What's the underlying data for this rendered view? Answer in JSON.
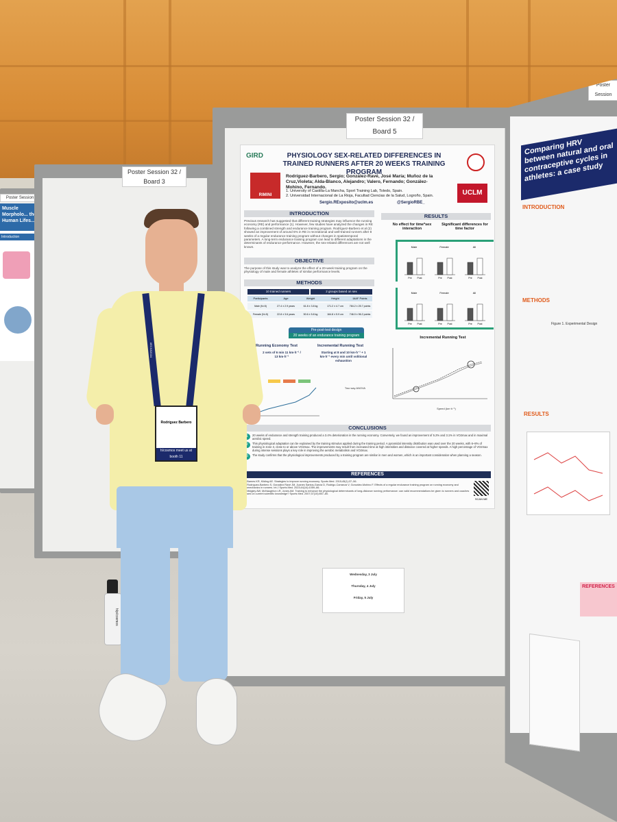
{
  "left_board": {
    "label": "Poster Session 32 / Board 3",
    "far_label": "Poster Session",
    "far_title": "Muscle Morpholo... the Human Lifes...",
    "far_intro": "Introduction"
  },
  "center_board": {
    "label": "Poster Session 32 / Board 5",
    "poster": {
      "logo_left": "GIRD",
      "logo_event": "RIMINI",
      "title": "PHYSIOLOGY SEX-RELATED DIFFERENCES IN TRAINED RUNNERS AFTER 20 WEEKS TRAINING PROGRAM",
      "authors": "Rodríguez-Barbero, Sergio; González-Ravé, José María; Muñoz de la Cruz,Violeta; Alda-Blanco, Alejandro; Valero, Fernando; González-Mohíno, Fernando.",
      "affiliation_1": "1. University of Castilla-La Mancha, Sport Training Lab, Toledo, Spain.",
      "affiliation_2": "2. Universidad Internacional de La Rioja, Facultad Ciencias de la Salud, Logroño, Spain.",
      "email": "Sergio.RExposito@uclm.es",
      "handle": "@SergioRBE_",
      "logo_right": "UCLM",
      "sections": {
        "introduction": "INTRODUCTION",
        "objective": "OBJECTIVE",
        "methods": "METHODS",
        "results": "RESULTS",
        "conclusions": "CONCLUSIONS",
        "references": "REFERENCES"
      },
      "intro_text": "Previous research has suggested that different training strategies may influence the running economy (RE) and performance (1). However, few studies have analyzed the changes in RE following a combined strength and endurance training program. Rodríguez-Barbero et al (2) showed an improvement of around 5% in RE in recreational and well-trained runners after 8 weeks of a regular endurance training program without changes in spatiotemporal parameters. A long-term endurance training program can lead to different adaptations in the determinants of endurance performance. However, the sex-related differences are not well known.",
      "objective_text": "The purpose of this study was to analyze the effect of a 20-week training program on the physiology of male and female athletes of similar performance levels.",
      "methods_table": {
        "header_left": "10 trained runners",
        "header_right": "2 groups based on sex",
        "columns": [
          "Participants",
          "Age",
          "Weight",
          "Height",
          "IAAF Points"
        ],
        "rows": [
          [
            "Male (N=5)",
            "27.4 ± 2.9 years",
            "61.8 ± 3.8 kg",
            "171.2 ± 4.7 cm",
            "784.2 ± 25.7 points"
          ],
          [
            "Female (N=5)",
            "22.8 ± 3.6 years",
            "50.6 ± 5.8 kg",
            "164.8 ± 5.9 cm",
            "746.0 ± 96.2 points"
          ]
        ]
      },
      "design_title": "Pre-post-test design",
      "design_sub": "20 weeks of an endurance training program",
      "running_economy_title": "Running Economy Test",
      "running_economy_detail": "2 sets of 6 min 11 km·h⁻¹ / 13 km·h⁻¹",
      "incremental_title": "Incremental Running Test",
      "incremental_detail": "Starting at 8 and 10 km·h⁻¹ + 1 km·h⁻¹ every min until volitional exhaustion",
      "two_way": "Two way ANOVA",
      "no_effect": "No effect for time*sex interaction",
      "significant": "Significant differences for time factor",
      "panel_labels": [
        "Male",
        "Female",
        "All"
      ],
      "pre_post": [
        "Pre",
        "Post"
      ],
      "incremental_chart_title": "Incremental Running Test",
      "speed_axis": "Speed (km·h⁻¹)",
      "conclusions": [
        "20 weeks of endurance and strength training produced a 3.4% deterioration in the running economy. Conversely, we found an improvement of 5.2% and 3.1% in VO2max and in maximal aerobic speed.",
        "This physiological adaptation can be explained by the training stimulus applied during the training period. A pyramidal intensity distribution was used over the 20 weeks, with 6–8% of training in zone 3, close to or above VO2max. The improvements may result from increased time at high intensities and distance covered at higher speeds. A high percentage of VO2max during intense sessions plays a key role in improving the aerobic metabolism and VO2max.",
        "The study confirms that the physiological improvements produced by a training program are similar in men and women, which is an important consideration when planning a season."
      ],
      "references": [
        "1. Barnes KR, Kilding AE. Strategies to improve running economy. Sports Med. 2015;45(1):37–56.",
        "2. Rodríguez-Barbero S, González Ravé JM, Juanes Santos-García D, Rodrigo-Carranza V, González-Mohino F. Effects of a regular endurance training program on running economy and biomechanics in runners. Int J Sports Med. 2023;44(14):1059–66.",
        "3. Midgley AW, McNaughton LR, Jones AM. Training to enhance the physiological determinants of long-distance running performance: can valid recommendations be given to runners and coaches based on current scientific knowledge? Sports Med. 2007;37(10):857–80."
      ],
      "scan_me": "SCAN ME"
    },
    "schedule": {
      "day1": "Wednesday, 3 July",
      "day2": "Thursday, 4 July",
      "day3": "Friday, 5 July"
    }
  },
  "right_board": {
    "label": "Poster Session",
    "title": "Comparing HRV between natural and oral contraceptive cycles in athletes: a case study",
    "introduction": "INTRODUCTION",
    "methods": "METHODS",
    "results": "RESULTS",
    "references": "REFERENCES",
    "figure_label": "Figure 1. Experimental Design"
  },
  "person": {
    "badge_name": "Rodríguez Barbero",
    "lanyard_text": "#ECSS2024",
    "badge_tag": "h/cosmos meet us at booth 11"
  },
  "bottle": {
    "brand": "h/p/cosmos"
  }
}
